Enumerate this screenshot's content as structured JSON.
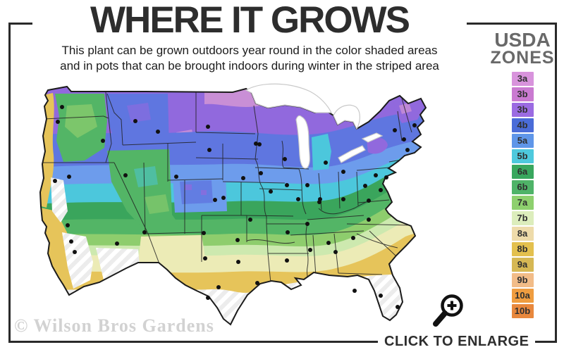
{
  "header": {
    "title": "WHERE IT GROWS",
    "subtitle_line1": "This plant can be grown outdoors year round in the color shaded areas",
    "subtitle_line2": "and in pots that can be brought indoors during winter in the striped area"
  },
  "legend": {
    "title_line1": "USDA",
    "title_line2": "ZONES",
    "zones": [
      {
        "label": "3a",
        "color": "#d893dc"
      },
      {
        "label": "3b",
        "color": "#ca7ad1"
      },
      {
        "label": "3b",
        "color": "#9b6be2"
      },
      {
        "label": "4b",
        "color": "#4a6cd8"
      },
      {
        "label": "5a",
        "color": "#5f96e9"
      },
      {
        "label": "5b",
        "color": "#4ec9dd"
      },
      {
        "label": "6a",
        "color": "#39a75e"
      },
      {
        "label": "6b",
        "color": "#4fb368"
      },
      {
        "label": "7a",
        "color": "#8ed06e"
      },
      {
        "label": "7b",
        "color": "#dcedbc"
      },
      {
        "label": "8a",
        "color": "#eedbaa"
      },
      {
        "label": "8b",
        "color": "#e3c04e"
      },
      {
        "label": "9a",
        "color": "#d6b854"
      },
      {
        "label": "9b",
        "color": "#f2bc88"
      },
      {
        "label": "10a",
        "color": "#ef9d40"
      },
      {
        "label": "10b",
        "color": "#e8883d"
      }
    ]
  },
  "map": {
    "description": "USDA plant hardiness zone map of the continental United States; color bands run from zone 3 (north, purple) to zone 10 (south, orange); striped white areas mark regions where the plant must be potted and brought indoors",
    "band_colors": {
      "pink": "#c98fd6",
      "purple": "#9169dd",
      "blue": "#5f76e0",
      "cornflower": "#6d9cec",
      "cyan": "#4cc7dc",
      "green_dark": "#3aa55c",
      "green_mid": "#53b566",
      "green_light": "#8ecd6d",
      "green_pale": "#cde9af",
      "yellow_pale": "#ecebb6",
      "gold": "#e6c45a",
      "stripe_gray": "#ececec"
    },
    "dot_color": "#111111",
    "outline_color": "#1b1b1b",
    "state_line_color": "#222222",
    "lake_outline_color": "#c9c9c9",
    "city_dots": [
      [
        88,
        152
      ],
      [
        82,
        173
      ],
      [
        146,
        200
      ],
      [
        192,
        172
      ],
      [
        224,
        187
      ],
      [
        295,
        180
      ],
      [
        297,
        213
      ],
      [
        178,
        249
      ],
      [
        250,
        251
      ],
      [
        78,
        257
      ],
      [
        98,
        251
      ],
      [
        96,
        320
      ],
      [
        101,
        343
      ],
      [
        106,
        358
      ],
      [
        166,
        346
      ],
      [
        205,
        330
      ],
      [
        305,
        284
      ],
      [
        317,
        281
      ],
      [
        289,
        331
      ],
      [
        291,
        367
      ],
      [
        337,
        341
      ],
      [
        345,
        253
      ],
      [
        370,
        246
      ],
      [
        384,
        272
      ],
      [
        407,
        263
      ],
      [
        355,
        312
      ],
      [
        363,
        204
      ],
      [
        368,
        205
      ],
      [
        404,
        226
      ],
      [
        436,
        263
      ],
      [
        462,
        231
      ],
      [
        487,
        244
      ],
      [
        338,
        372
      ],
      [
        310,
        408
      ],
      [
        295,
        423
      ],
      [
        365,
        402
      ],
      [
        408,
        330
      ],
      [
        407,
        370
      ],
      [
        423,
        283
      ],
      [
        436,
        318
      ],
      [
        440,
        355
      ],
      [
        453,
        287
      ],
      [
        466,
        345
      ],
      [
        476,
        358
      ],
      [
        501,
        338
      ],
      [
        523,
        312
      ],
      [
        503,
        413
      ],
      [
        540,
        420
      ],
      [
        564,
        436
      ],
      [
        454,
        283
      ],
      [
        487,
        283
      ],
      [
        523,
        285
      ],
      [
        540,
        270
      ],
      [
        548,
        252
      ],
      [
        560,
        185
      ],
      [
        573,
        198
      ],
      [
        588,
        178
      ],
      [
        578,
        213
      ],
      [
        533,
        249
      ],
      [
        518,
        264
      ]
    ]
  },
  "footer": {
    "watermark": "© Wilson Bros Gardens",
    "enlarge_label": "CLICK TO ENLARGE",
    "enlarge_icon": "magnifier-plus-icon"
  },
  "frame_color": "#2a2a2a"
}
